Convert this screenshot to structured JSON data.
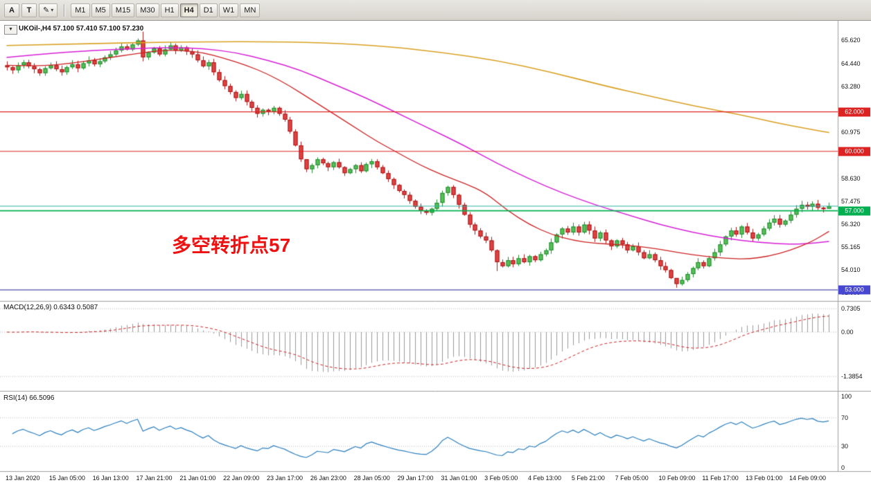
{
  "toolbar": {
    "tool_a": "A",
    "tool_t": "T",
    "pen_icon": "✎",
    "caret_icon": "▾",
    "timeframes": [
      "M1",
      "M5",
      "M15",
      "M30",
      "H1",
      "H4",
      "D1",
      "W1",
      "MN"
    ],
    "active_timeframe": "H4"
  },
  "chart_data": {
    "type": "candlestick",
    "symbol": "UKOil-",
    "timeframe": "H4",
    "title": "UKOil-,H4 57.100 57.410 57.100 57.230",
    "dropdown_icon": "▼",
    "ohlc_current": {
      "open": "57.100",
      "high": "57.410",
      "low": "57.100",
      "close": "57.230"
    },
    "ylim_main": [
      52.44,
      66.6
    ],
    "y_ticks_main": [
      "65.620",
      "64.440",
      "63.280",
      "60.975",
      "58.630",
      "57.475",
      "56.320",
      "55.165",
      "54.010",
      "52.855"
    ],
    "x_labels": [
      "13 Jan 2020",
      "15 Jan 05:00",
      "16 Jan 13:00",
      "17 Jan 21:00",
      "21 Jan 01:00",
      "22 Jan 09:00",
      "23 Jan 17:00",
      "26 Jan 23:00",
      "28 Jan 05:00",
      "29 Jan 17:00",
      "31 Jan 01:00",
      "3 Feb 05:00",
      "4 Feb 13:00",
      "5 Feb 21:00",
      "7 Feb 05:00",
      "10 Feb 09:00",
      "11 Feb 17:00",
      "13 Feb 01:00",
      "14 Feb 09:00"
    ],
    "first_open": 64.35,
    "closes": [
      64.25,
      64.1,
      64.35,
      64.5,
      64.3,
      64.15,
      63.95,
      64.2,
      64.35,
      64.15,
      64.0,
      64.25,
      64.4,
      64.2,
      64.45,
      64.6,
      64.4,
      64.55,
      64.75,
      64.9,
      65.1,
      65.3,
      65.15,
      65.4,
      65.6,
      64.75,
      65.0,
      65.2,
      64.9,
      65.15,
      65.35,
      65.1,
      65.25,
      65.05,
      64.9,
      64.6,
      64.3,
      64.5,
      64.0,
      63.6,
      63.3,
      63.0,
      62.7,
      62.9,
      62.5,
      62.2,
      61.9,
      62.1,
      62.0,
      62.2,
      61.9,
      61.6,
      61.0,
      60.3,
      59.6,
      59.1,
      59.3,
      59.6,
      59.4,
      59.2,
      59.45,
      59.2,
      58.9,
      59.1,
      59.3,
      59.0,
      59.35,
      59.5,
      59.2,
      58.9,
      58.6,
      58.3,
      58.0,
      57.8,
      57.5,
      57.2,
      57.0,
      56.9,
      57.1,
      57.4,
      57.9,
      58.2,
      57.8,
      57.3,
      56.8,
      56.3,
      56.0,
      55.7,
      55.5,
      55.0,
      54.4,
      54.2,
      54.5,
      54.3,
      54.6,
      54.4,
      54.7,
      54.5,
      54.8,
      55.0,
      55.4,
      55.8,
      56.1,
      55.9,
      56.2,
      55.9,
      56.3,
      56.0,
      55.6,
      55.9,
      55.5,
      55.2,
      55.5,
      55.3,
      55.0,
      55.2,
      54.9,
      54.6,
      54.8,
      54.5,
      54.2,
      54.0,
      53.6,
      53.3,
      53.5,
      53.8,
      54.1,
      54.4,
      54.2,
      54.6,
      54.9,
      55.3,
      55.7,
      56.0,
      55.8,
      56.2,
      55.9,
      55.6,
      55.8,
      56.1,
      56.4,
      56.6,
      56.3,
      56.5,
      56.8,
      57.1,
      57.3,
      57.2,
      57.35,
      57.15,
      57.1,
      57.23
    ],
    "wick_overrides": {
      "25": [
        66.05,
        64.55
      ],
      "55": [
        59.35,
        58.95
      ],
      "90": [
        55.05,
        53.95
      ],
      "123": [
        53.55,
        53.11
      ],
      "151": [
        57.41,
        57.1
      ]
    },
    "price_lines": [
      {
        "price": "62.000",
        "color": "#dd2222",
        "badge_color": "#dd2222",
        "width": 1.2
      },
      {
        "price": "60.000",
        "color": "#dd2222",
        "badge_color": "#dd2222",
        "width": 1.2
      },
      {
        "price": "57.000",
        "color": "#00b050",
        "badge_color": "#00b050",
        "width": 1.6
      },
      {
        "price": "53.000",
        "color": "#20209a",
        "badge_color": "#4747d2",
        "width": 1.2
      }
    ],
    "bid_line": {
      "price": 57.23,
      "color": "#2ab3a3"
    },
    "moving_averages": [
      {
        "name": "ma-slow-orange",
        "color": "#d9a021",
        "width": 1.6,
        "points": [
          [
            0,
            65.35
          ],
          [
            15,
            65.45
          ],
          [
            30,
            65.52
          ],
          [
            45,
            65.55
          ],
          [
            58,
            65.5
          ],
          [
            70,
            65.3
          ],
          [
            80,
            65.0
          ],
          [
            90,
            64.6
          ],
          [
            100,
            64.0
          ],
          [
            110,
            63.3
          ],
          [
            118,
            62.8
          ],
          [
            126,
            62.3
          ],
          [
            134,
            61.9
          ],
          [
            142,
            61.4
          ],
          [
            148,
            61.1
          ],
          [
            151,
            60.95
          ]
        ]
      },
      {
        "name": "ma-mid-magenta",
        "color": "#d620d6",
        "width": 1.5,
        "points": [
          [
            0,
            64.75
          ],
          [
            8,
            64.95
          ],
          [
            16,
            65.1
          ],
          [
            24,
            65.2
          ],
          [
            30,
            65.25
          ],
          [
            36,
            65.2
          ],
          [
            42,
            65.0
          ],
          [
            48,
            64.6
          ],
          [
            54,
            64.1
          ],
          [
            60,
            63.4
          ],
          [
            66,
            62.7
          ],
          [
            72,
            61.9
          ],
          [
            78,
            61.1
          ],
          [
            84,
            60.3
          ],
          [
            90,
            59.4
          ],
          [
            96,
            58.6
          ],
          [
            102,
            57.9
          ],
          [
            108,
            57.3
          ],
          [
            114,
            56.8
          ],
          [
            120,
            56.3
          ],
          [
            126,
            55.9
          ],
          [
            132,
            55.6
          ],
          [
            138,
            55.4
          ],
          [
            144,
            55.3
          ],
          [
            148,
            55.35
          ],
          [
            151,
            55.45
          ]
        ]
      },
      {
        "name": "ma-fast-red",
        "color": "#cc2222",
        "width": 1.3,
        "points": [
          [
            0,
            64.35
          ],
          [
            6,
            64.3
          ],
          [
            12,
            64.45
          ],
          [
            18,
            64.7
          ],
          [
            24,
            64.95
          ],
          [
            28,
            65.1
          ],
          [
            32,
            65.1
          ],
          [
            36,
            65.0
          ],
          [
            40,
            64.7
          ],
          [
            44,
            64.35
          ],
          [
            48,
            63.9
          ],
          [
            52,
            63.3
          ],
          [
            56,
            62.6
          ],
          [
            60,
            61.9
          ],
          [
            64,
            61.2
          ],
          [
            68,
            60.5
          ],
          [
            72,
            59.9
          ],
          [
            76,
            59.3
          ],
          [
            80,
            58.8
          ],
          [
            84,
            58.4
          ],
          [
            88,
            57.9
          ],
          [
            92,
            57.0
          ],
          [
            96,
            56.3
          ],
          [
            100,
            55.8
          ],
          [
            104,
            55.5
          ],
          [
            108,
            55.35
          ],
          [
            112,
            55.3
          ],
          [
            116,
            55.2
          ],
          [
            120,
            55.05
          ],
          [
            124,
            54.85
          ],
          [
            128,
            54.7
          ],
          [
            132,
            54.6
          ],
          [
            136,
            54.55
          ],
          [
            140,
            54.7
          ],
          [
            144,
            55.0
          ],
          [
            148,
            55.45
          ],
          [
            151,
            55.95
          ]
        ]
      }
    ],
    "annotation": {
      "text": "多空转折点57",
      "color": "#ee1111"
    },
    "macd": {
      "label": "MACD(12,26,9) 0.6343 0.5087",
      "params": "12,26,9",
      "value": 0.6343,
      "signal_value": 0.5087,
      "y_ticks": [
        {
          "v": 0.7305,
          "label": "0.7305"
        },
        {
          "v": 0,
          "label": "0.00"
        },
        {
          "v": -1.3854,
          "label": "-1.3854"
        }
      ]
    },
    "rsi": {
      "label": "RSI(14) 66.5096",
      "period": 14,
      "value": 66.5096,
      "levels": [
        70,
        30
      ],
      "y_ticks": [
        {
          "v": 100,
          "label": "100"
        },
        {
          "v": 70,
          "label": "70"
        },
        {
          "v": 30,
          "label": "30"
        },
        {
          "v": 0,
          "label": "0"
        }
      ]
    }
  },
  "colors": {
    "bull_fill": "#57c057",
    "bull_stroke": "#1f8a2f",
    "bear_fill": "#e04343",
    "bear_stroke": "#aa1515",
    "histogram": "#9a9a9a",
    "signal": "#cc2222",
    "rsi_line": "#2a7fbf",
    "grid_dotted": "#b8b8b8",
    "separator": "#9e9e9e",
    "axis_text": "#111111"
  }
}
